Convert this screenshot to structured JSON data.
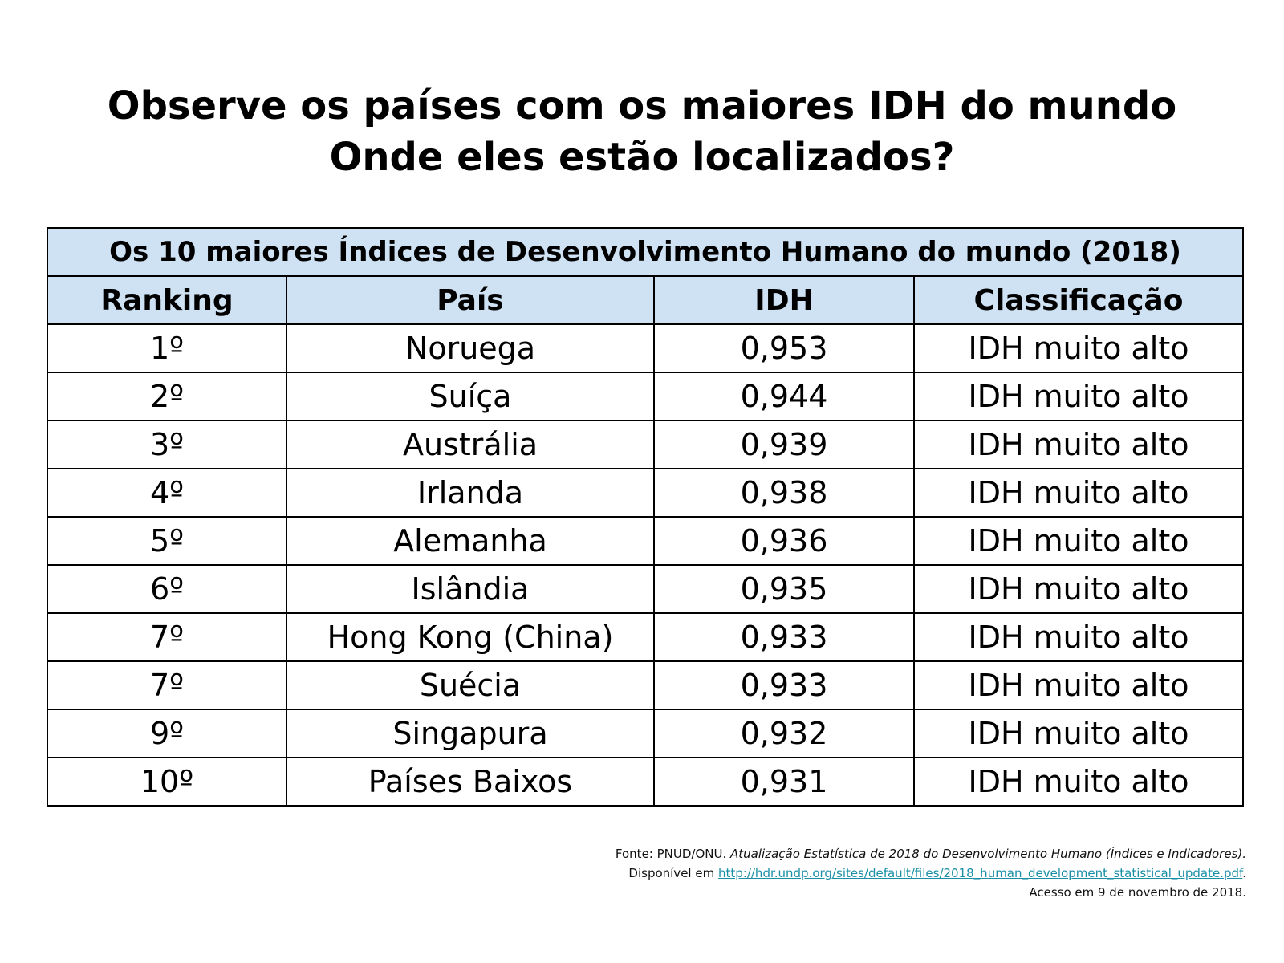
{
  "heading": {
    "line1": "Observe os países com os maiores IDH do mundo",
    "line2": "Onde eles estão localizados?"
  },
  "table": {
    "caption": "Os 10 maiores Índices de Desenvolvimento Humano do mundo (2018)",
    "columns": [
      "Ranking",
      "País",
      "IDH",
      "Classificação"
    ],
    "rows": [
      [
        "1º",
        "Noruega",
        "0,953",
        "IDH muito alto"
      ],
      [
        "2º",
        "Suíça",
        "0,944",
        "IDH muito alto"
      ],
      [
        "3º",
        "Austrália",
        "0,939",
        "IDH muito alto"
      ],
      [
        "4º",
        "Irlanda",
        "0,938",
        "IDH muito alto"
      ],
      [
        "5º",
        "Alemanha",
        "0,936",
        "IDH muito alto"
      ],
      [
        "6º",
        "Islândia",
        "0,935",
        "IDH muito alto"
      ],
      [
        "7º",
        "Hong Kong (China)",
        "0,933",
        "IDH muito alto"
      ],
      [
        "7º",
        "Suécia",
        "0,933",
        "IDH muito alto"
      ],
      [
        "9º",
        "Singapura",
        "0,932",
        "IDH muito alto"
      ],
      [
        "10º",
        "Países Baixos",
        "0,931",
        "IDH muito alto"
      ]
    ],
    "header_bg": "#cfe2f3"
  },
  "source": {
    "prefix": "Fonte: PNUD/ONU.",
    "title": "Atualização Estatística de 2018 do Desenvolvimento Humano (Índices e Indicadores).",
    "available_prefix": "Disponível em",
    "link": "http://hdr.undp.org/sites/default/files/2018_human_development_statistical_update.pdf",
    "available_suffix": ".",
    "access": "Acesso em 9 de novembro de 2018.",
    "link_color": "#1a8fa6"
  }
}
